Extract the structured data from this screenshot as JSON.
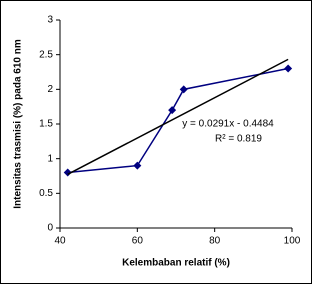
{
  "chart_data": {
    "type": "line",
    "xlabel": "Kelembaban relatif (%)",
    "ylabel": "Intensitas trasmisi (%) pada 610 nm",
    "annotations": [
      "y = 0.0291x - 0.4484",
      "R² = 0.819"
    ],
    "series": [
      {
        "x": [
          42,
          60,
          69,
          72,
          99
        ],
        "values": [
          0.8,
          0.9,
          1.7,
          2.0,
          2.3
        ],
        "color": "#000080",
        "marker": "diamond"
      },
      {
        "x": [
          42,
          99
        ],
        "values": [
          0.774,
          2.432
        ],
        "color": "#000000"
      }
    ],
    "xlim": [
      40,
      100
    ],
    "xticks": [
      40,
      60,
      80,
      100
    ],
    "ylim": [
      0,
      3
    ],
    "yticks": [
      0,
      0.5,
      1,
      1.5,
      2,
      2.5,
      3
    ]
  }
}
